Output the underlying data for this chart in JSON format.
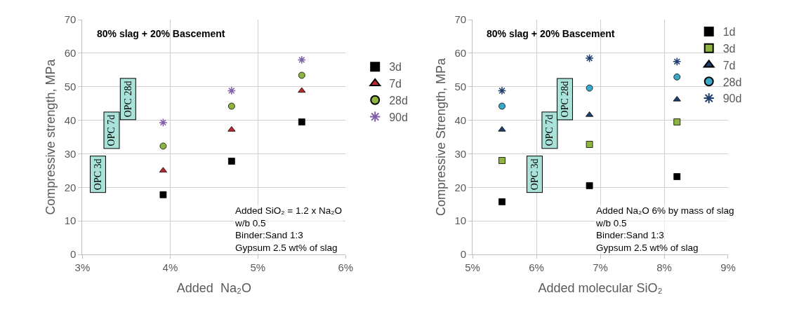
{
  "chart_data": [
    {
      "type": "scatter",
      "title": "80% slag + 20% Bascement",
      "xlabel": "Added  Na₂O",
      "ylabel": "Compressive strength, MPa",
      "x": [
        3.92,
        4.7,
        5.5
      ],
      "series": [
        {
          "name": "3d",
          "color": "#000000",
          "marker": "square",
          "values": [
            17.8,
            27.8,
            39.5
          ]
        },
        {
          "name": "7d",
          "color": "#c0272d",
          "marker": "triangle",
          "values": [
            25,
            37.2,
            48.8
          ]
        },
        {
          "name": "28d",
          "color": "#8db43e",
          "marker": "circle",
          "values": [
            32.3,
            44.2,
            53.4
          ]
        },
        {
          "name": "90d",
          "color": "#7f5fa8",
          "marker": "cross",
          "values": [
            39.3,
            48.8,
            58
          ]
        }
      ],
      "xlim": [
        3,
        6
      ],
      "xticks": [
        {
          "value": 3,
          "label": "3%"
        },
        {
          "value": 4,
          "label": "4%"
        },
        {
          "value": 5,
          "label": "5%"
        },
        {
          "value": 6,
          "label": "6%"
        }
      ],
      "ylim": [
        0,
        70
      ],
      "yticks": [
        0,
        10,
        20,
        30,
        40,
        50,
        60,
        70
      ],
      "grid": true,
      "legend": "right",
      "annotations": [
        "OPC 3d",
        "OPC 7d",
        "OPC 28d",
        "Added SiO₂ = 1.2 x Na₂O\nw/b 0.5\nBinder:Sand 1:3\nGypsum 2.5 wt% of slag"
      ]
    },
    {
      "type": "scatter",
      "title": "80% slag + 20% Bascement",
      "xlabel": "Added molecular SiO₂",
      "ylabel": "Compressive Strength, MPa",
      "x": [
        5.46,
        6.83,
        8.2
      ],
      "series": [
        {
          "name": "1d",
          "color": "#000000",
          "marker": "square",
          "values": [
            15.7,
            20.5,
            23.2
          ]
        },
        {
          "name": "3d",
          "color": "#8db43e",
          "marker": "square",
          "values": [
            28,
            32.8,
            39.5
          ]
        },
        {
          "name": "7d",
          "color": "#1f3f6e",
          "marker": "triangle",
          "values": [
            37.2,
            41.6,
            46.2
          ]
        },
        {
          "name": "28d",
          "color": "#3aa8c8",
          "marker": "circle",
          "values": [
            44.2,
            49.6,
            52.9
          ]
        },
        {
          "name": "90d",
          "color": "#1f3f6e",
          "marker": "cross",
          "values": [
            48.8,
            58.5,
            57.5
          ]
        }
      ],
      "xlim": [
        5,
        9
      ],
      "xticks": [
        {
          "value": 5,
          "label": "5%"
        },
        {
          "value": 6,
          "label": "6%"
        },
        {
          "value": 7,
          "label": "7%"
        },
        {
          "value": 8,
          "label": "8%"
        },
        {
          "value": 9,
          "label": "9%"
        }
      ],
      "ylim": [
        0,
        70
      ],
      "yticks": [
        0,
        10,
        20,
        30,
        40,
        50,
        60,
        70
      ],
      "grid": true,
      "legend": "top right",
      "annotations": [
        "OPC 3d",
        "OPC 7d",
        "OPC 28d",
        "Added Na₂O 6% by mass of slag\nw/b 0.5\nBinder:Sand 1:3\nGypsum 2.5 wt% of slag"
      ]
    }
  ]
}
